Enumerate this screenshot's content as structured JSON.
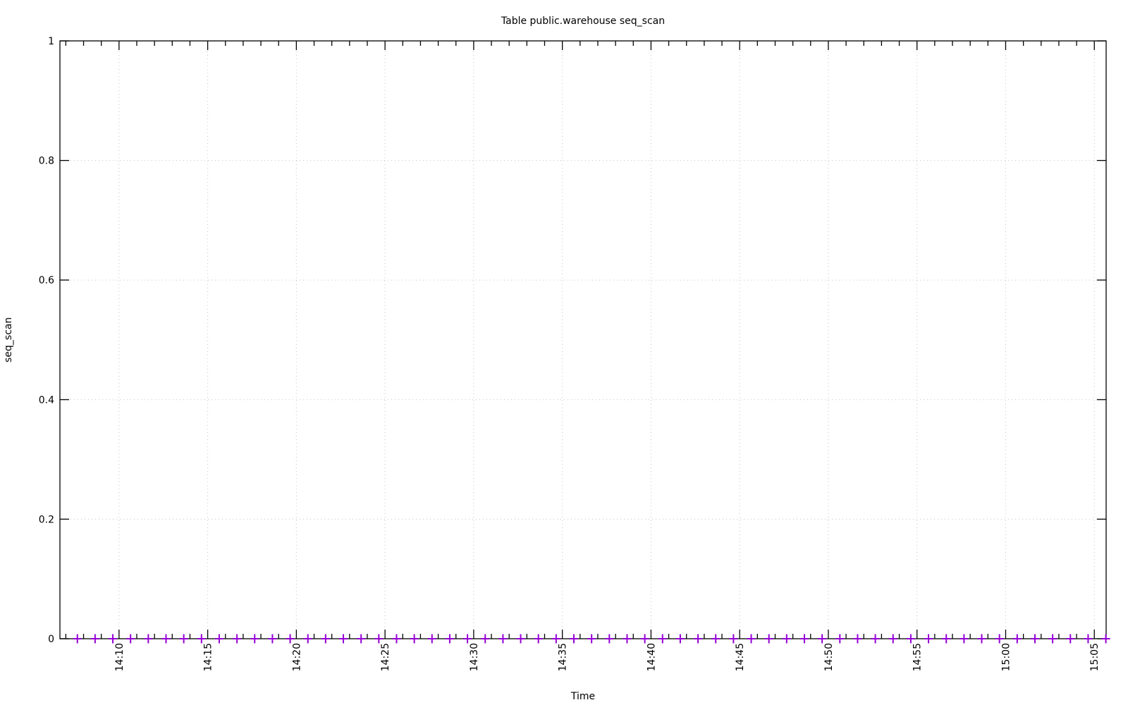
{
  "page": {
    "background": "#ffffff"
  },
  "colors": {
    "axis": "#000000",
    "grid": "#c4c4c4",
    "text": "#000000",
    "series1": "#9400d3"
  },
  "chart_data": {
    "type": "scatter",
    "title": "Table public.warehouse seq_scan",
    "xlabel": "Time",
    "ylabel": "seq_scan",
    "legend_position": "none",
    "grid": "dotted",
    "ylim": [
      0,
      1
    ],
    "y_ticks": [
      0,
      0.2,
      0.4,
      0.6,
      0.8,
      1
    ],
    "y_tick_labels": [
      "0",
      "0.2",
      "0.4",
      "0.6",
      "0.8",
      "1"
    ],
    "x_range": [
      "14:06:40",
      "15:05:40"
    ],
    "x_tick_labels": [
      "14:10",
      "14:15",
      "14:20",
      "14:25",
      "14:30",
      "14:35",
      "14:40",
      "14:45",
      "14:50",
      "14:55",
      "15:00",
      "15:05"
    ],
    "x_minor_tick_interval_seconds": 60,
    "series": [
      {
        "name": "seq_scan",
        "marker": "plus",
        "color": "#9400d3",
        "first_sample": "14:07:39",
        "sample_interval_seconds": 60,
        "values": [
          0,
          0,
          0,
          0,
          0,
          0,
          0,
          0,
          0,
          0,
          0,
          0,
          0,
          0,
          0,
          0,
          0,
          0,
          0,
          0,
          0,
          0,
          0,
          0,
          0,
          0,
          0,
          0,
          0,
          0,
          0,
          0,
          0,
          0,
          0,
          0,
          0,
          0,
          0,
          0,
          0,
          0,
          0,
          0,
          0,
          0,
          0,
          0,
          0,
          0,
          0,
          0,
          0,
          0,
          0,
          0,
          0,
          0,
          0
        ]
      }
    ]
  }
}
